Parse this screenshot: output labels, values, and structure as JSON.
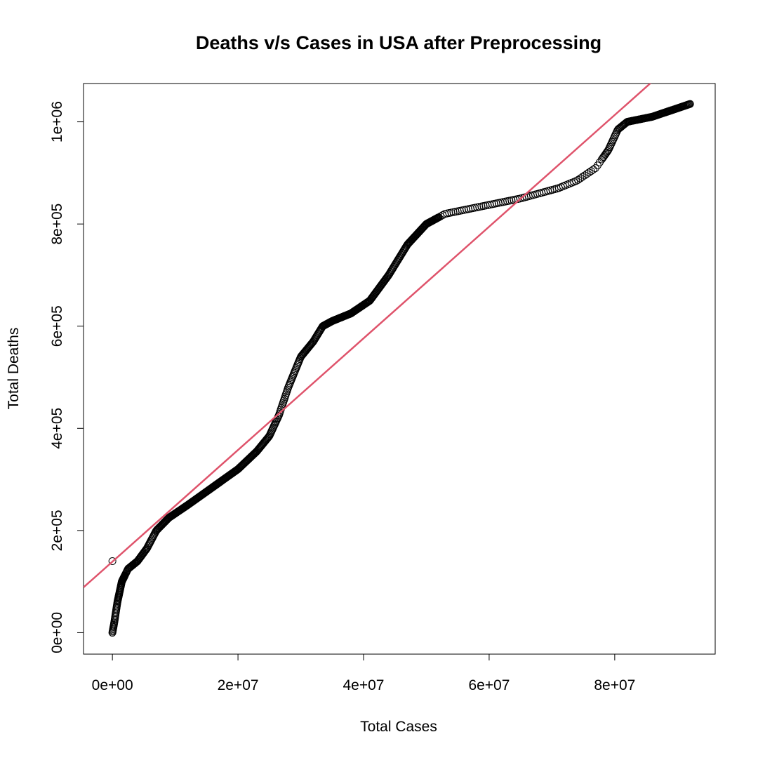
{
  "chart_data": {
    "type": "scatter",
    "title": "Deaths v/s Cases in USA after Preprocessing",
    "xlabel": "Total Cases",
    "ylabel": "Total Deaths",
    "xlim": [
      -4600000,
      96000000
    ],
    "ylim": [
      -42000,
      1075000
    ],
    "x_ticks": [
      0,
      20000000,
      40000000,
      60000000,
      80000000
    ],
    "x_tick_labels": [
      "0e+00",
      "2e+07",
      "4e+07",
      "6e+07",
      "8e+07"
    ],
    "y_ticks": [
      0,
      200000,
      400000,
      600000,
      800000,
      1000000
    ],
    "y_tick_labels": [
      "0e+00",
      "2e+05",
      "4e+05",
      "6e+05",
      "8e+05",
      "1e+06"
    ],
    "grid": false,
    "point_color": "#000000",
    "fit_line_color": "#DF536B",
    "fit_line": {
      "intercept": 139000,
      "slope": 0.01093
    },
    "outliers": [
      [
        0,
        140000
      ]
    ],
    "trend_anchors": [
      [
        0,
        0
      ],
      [
        300000,
        20000
      ],
      [
        800000,
        60000
      ],
      [
        1500000,
        100000
      ],
      [
        2500000,
        125000
      ],
      [
        4000000,
        140000
      ],
      [
        5500000,
        165000
      ],
      [
        7000000,
        200000
      ],
      [
        9000000,
        225000
      ],
      [
        12000000,
        250000
      ],
      [
        16000000,
        285000
      ],
      [
        20000000,
        320000
      ],
      [
        23000000,
        355000
      ],
      [
        25000000,
        385000
      ],
      [
        26500000,
        425000
      ],
      [
        28000000,
        480000
      ],
      [
        30000000,
        540000
      ],
      [
        32000000,
        570000
      ],
      [
        33500000,
        600000
      ],
      [
        35000000,
        610000
      ],
      [
        38000000,
        625000
      ],
      [
        41000000,
        650000
      ],
      [
        44000000,
        700000
      ],
      [
        47000000,
        760000
      ],
      [
        50000000,
        800000
      ],
      [
        53000000,
        820000
      ],
      [
        57000000,
        830000
      ],
      [
        61000000,
        840000
      ],
      [
        65000000,
        850000
      ],
      [
        68000000,
        860000
      ],
      [
        71000000,
        870000
      ],
      [
        74000000,
        885000
      ],
      [
        77000000,
        910000
      ],
      [
        79000000,
        945000
      ],
      [
        80500000,
        985000
      ],
      [
        82000000,
        1000000
      ],
      [
        86000000,
        1010000
      ],
      [
        92000000,
        1035000
      ]
    ],
    "sample_count": 760
  }
}
